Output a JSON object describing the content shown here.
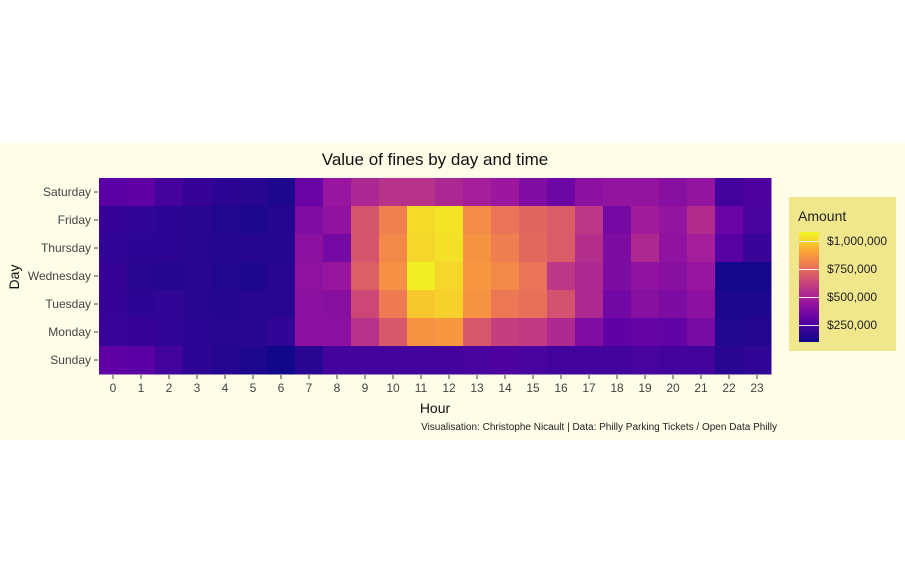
{
  "chart_data": {
    "type": "heatmap",
    "title": "Value of fines by day and time",
    "xlabel": "Hour",
    "ylabel": "Day",
    "x": [
      "0",
      "1",
      "2",
      "3",
      "4",
      "5",
      "6",
      "7",
      "8",
      "9",
      "10",
      "11",
      "12",
      "13",
      "14",
      "15",
      "16",
      "17",
      "18",
      "19",
      "20",
      "21",
      "22",
      "23"
    ],
    "y": [
      "Saturday",
      "Friday",
      "Thursday",
      "Wednesday",
      "Tuesday",
      "Monday",
      "Sunday"
    ],
    "values": [
      [
        290000,
        300000,
        240000,
        200000,
        180000,
        170000,
        140000,
        330000,
        450000,
        520000,
        560000,
        560000,
        520000,
        490000,
        460000,
        390000,
        340000,
        420000,
        440000,
        440000,
        410000,
        440000,
        230000,
        260000
      ],
      [
        200000,
        190000,
        180000,
        170000,
        150000,
        140000,
        160000,
        390000,
        430000,
        680000,
        810000,
        1020000,
        1040000,
        840000,
        770000,
        730000,
        700000,
        580000,
        360000,
        480000,
        440000,
        540000,
        330000,
        250000
      ],
      [
        190000,
        180000,
        180000,
        170000,
        160000,
        160000,
        160000,
        420000,
        360000,
        680000,
        830000,
        1010000,
        1030000,
        860000,
        800000,
        740000,
        700000,
        550000,
        380000,
        530000,
        430000,
        490000,
        280000,
        210000
      ],
      [
        200000,
        170000,
        160000,
        170000,
        150000,
        140000,
        170000,
        430000,
        450000,
        710000,
        850000,
        1060000,
        1010000,
        870000,
        830000,
        770000,
        580000,
        530000,
        380000,
        430000,
        410000,
        450000,
        120000,
        120000
      ],
      [
        200000,
        180000,
        190000,
        170000,
        160000,
        170000,
        170000,
        420000,
        410000,
        640000,
        790000,
        980000,
        1000000,
        860000,
        780000,
        760000,
        670000,
        530000,
        350000,
        410000,
        380000,
        420000,
        140000,
        140000
      ],
      [
        210000,
        200000,
        190000,
        180000,
        170000,
        170000,
        190000,
        420000,
        420000,
        560000,
        690000,
        860000,
        870000,
        690000,
        610000,
        590000,
        530000,
        390000,
        300000,
        320000,
        310000,
        370000,
        150000,
        160000
      ],
      [
        300000,
        290000,
        230000,
        180000,
        160000,
        140000,
        110000,
        170000,
        240000,
        240000,
        240000,
        230000,
        240000,
        250000,
        260000,
        250000,
        230000,
        240000,
        230000,
        250000,
        240000,
        230000,
        170000,
        190000
      ]
    ],
    "colorbar": {
      "title": "Amount",
      "ticks": [
        250000,
        500000,
        750000,
        1000000
      ],
      "tick_labels": [
        "$250,000",
        "$500,000",
        "$750,000",
        "$1,000,000"
      ],
      "range": [
        100000,
        1080000
      ],
      "colormap": "plasma"
    },
    "caption": "Visualisation: Christophe Nicault | Data: Philly Parking Tickets / Open Data Philly",
    "background": "#fffde7",
    "legend_background": "#f0e68c"
  }
}
